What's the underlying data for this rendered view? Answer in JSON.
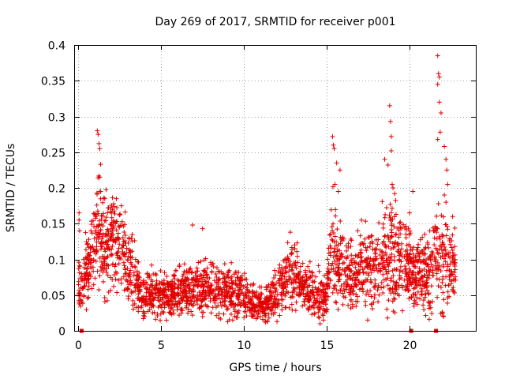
{
  "chart_data": {
    "type": "scatter",
    "title": "Day 269 of 2017, SRMTID for receiver p001",
    "xlabel": "GPS time / hours",
    "ylabel": "SRMTID / TECUs",
    "xlim": [
      -0.2,
      24
    ],
    "ylim": [
      0,
      0.4
    ],
    "x_ticks": [
      0,
      5,
      10,
      15,
      20
    ],
    "x_tick_labels": [
      "0",
      "5",
      "10",
      "15",
      "20"
    ],
    "y_ticks": [
      0,
      0.05,
      0.1,
      0.15,
      0.2,
      0.25,
      0.3,
      0.35,
      0.4
    ],
    "y_tick_labels": [
      "0",
      "0.05",
      "0.1",
      "0.15",
      "0.2",
      "0.25",
      "0.3",
      "0.35",
      "0.4"
    ],
    "grid": true,
    "marker": "plus",
    "marker_color": "#e00000",
    "envelope": [
      [
        0.0,
        0.06,
        0.025
      ],
      [
        0.3,
        0.07,
        0.025
      ],
      [
        0.6,
        0.09,
        0.03
      ],
      [
        0.9,
        0.11,
        0.035
      ],
      [
        1.2,
        0.15,
        0.05
      ],
      [
        1.5,
        0.13,
        0.04
      ],
      [
        1.8,
        0.12,
        0.04
      ],
      [
        2.1,
        0.13,
        0.04
      ],
      [
        2.5,
        0.12,
        0.04
      ],
      [
        2.9,
        0.1,
        0.035
      ],
      [
        3.3,
        0.08,
        0.03
      ],
      [
        3.7,
        0.055,
        0.02
      ],
      [
        4.2,
        0.05,
        0.02
      ],
      [
        5.0,
        0.05,
        0.02
      ],
      [
        6.0,
        0.055,
        0.02
      ],
      [
        7.0,
        0.06,
        0.022
      ],
      [
        8.0,
        0.06,
        0.022
      ],
      [
        9.0,
        0.055,
        0.02
      ],
      [
        10.0,
        0.05,
        0.02
      ],
      [
        10.5,
        0.04,
        0.015
      ],
      [
        11.0,
        0.035,
        0.013
      ],
      [
        11.5,
        0.04,
        0.015
      ],
      [
        12.0,
        0.05,
        0.018
      ],
      [
        12.5,
        0.07,
        0.025
      ],
      [
        13.0,
        0.08,
        0.03
      ],
      [
        13.5,
        0.06,
        0.02
      ],
      [
        14.0,
        0.055,
        0.02
      ],
      [
        14.5,
        0.05,
        0.02
      ],
      [
        15.0,
        0.05,
        0.02
      ],
      [
        15.3,
        0.12,
        0.05
      ],
      [
        15.7,
        0.09,
        0.035
      ],
      [
        16.2,
        0.08,
        0.03
      ],
      [
        16.7,
        0.075,
        0.03
      ],
      [
        17.2,
        0.09,
        0.035
      ],
      [
        17.7,
        0.085,
        0.03
      ],
      [
        18.2,
        0.09,
        0.035
      ],
      [
        18.7,
        0.11,
        0.045
      ],
      [
        19.2,
        0.1,
        0.04
      ],
      [
        19.7,
        0.09,
        0.035
      ],
      [
        20.2,
        0.085,
        0.03
      ],
      [
        20.7,
        0.08,
        0.03
      ],
      [
        21.2,
        0.075,
        0.03
      ],
      [
        21.6,
        0.11,
        0.05
      ],
      [
        22.0,
        0.1,
        0.04
      ],
      [
        22.4,
        0.09,
        0.035
      ],
      [
        22.8,
        0.085,
        0.03
      ]
    ],
    "spikes": [
      [
        0.05,
        0.165
      ],
      [
        0.05,
        0.155
      ],
      [
        0.08,
        0.14
      ],
      [
        1.15,
        0.28
      ],
      [
        1.2,
        0.275
      ],
      [
        1.25,
        0.262
      ],
      [
        1.3,
        0.255
      ],
      [
        1.35,
        0.233
      ],
      [
        1.3,
        0.215
      ],
      [
        1.35,
        0.195
      ],
      [
        1.6,
        0.185
      ],
      [
        1.8,
        0.172
      ],
      [
        2.3,
        0.185
      ],
      [
        2.0,
        0.165
      ],
      [
        2.6,
        0.175
      ],
      [
        6.9,
        0.148
      ],
      [
        7.5,
        0.143
      ],
      [
        12.8,
        0.138
      ],
      [
        15.35,
        0.272
      ],
      [
        15.4,
        0.26
      ],
      [
        15.45,
        0.255
      ],
      [
        15.6,
        0.235
      ],
      [
        15.8,
        0.225
      ],
      [
        15.5,
        0.205
      ],
      [
        15.7,
        0.195
      ],
      [
        17.1,
        0.155
      ],
      [
        18.5,
        0.24
      ],
      [
        18.7,
        0.232
      ],
      [
        18.8,
        0.315
      ],
      [
        18.85,
        0.293
      ],
      [
        18.9,
        0.272
      ],
      [
        18.9,
        0.252
      ],
      [
        18.95,
        0.205
      ],
      [
        19.0,
        0.2
      ],
      [
        19.1,
        0.192
      ],
      [
        20.2,
        0.195
      ],
      [
        20.0,
        0.165
      ],
      [
        21.7,
        0.385
      ],
      [
        21.75,
        0.36
      ],
      [
        21.8,
        0.355
      ],
      [
        21.7,
        0.345
      ],
      [
        21.8,
        0.32
      ],
      [
        21.9,
        0.305
      ],
      [
        21.85,
        0.278
      ],
      [
        21.7,
        0.268
      ],
      [
        22.1,
        0.258
      ],
      [
        22.2,
        0.24
      ],
      [
        22.25,
        0.225
      ],
      [
        22.3,
        0.205
      ],
      [
        22.1,
        0.19
      ],
      [
        22.2,
        0.18
      ],
      [
        22.6,
        0.16
      ],
      [
        22.0,
        0.025
      ],
      [
        22.05,
        0.02
      ],
      [
        4.0,
        0.02
      ],
      [
        14.6,
        0.01
      ],
      [
        14.8,
        0.015
      ],
      [
        11.3,
        0.012
      ],
      [
        12.0,
        0.013
      ]
    ],
    "axis_markers": [
      0.2,
      20.1,
      21.6
    ]
  }
}
